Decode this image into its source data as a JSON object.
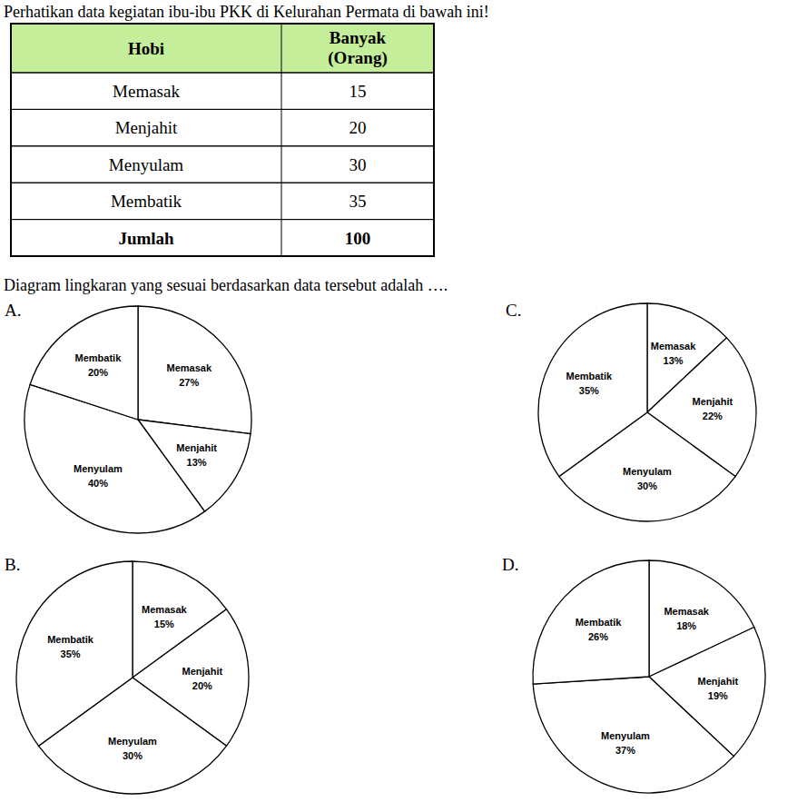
{
  "question": "Perhatikan data kegiatan ibu-ibu PKK di Kelurahan Permata di bawah ini!",
  "table": {
    "header": [
      "Hobi",
      "Banyak (Orang)"
    ],
    "rows": [
      [
        "Memasak",
        15
      ],
      [
        "Menjahit",
        20
      ],
      [
        "Menyulam",
        30
      ],
      [
        "Membatik",
        35
      ]
    ],
    "footer": [
      "Jumlah",
      100
    ]
  },
  "prompt": "Diagram lingkaran yang sesuai berdasarkan data tersebut adalah ….",
  "chart_data": [
    {
      "type": "pie",
      "title": "A.",
      "categories": [
        "Memasak",
        "Menjahit",
        "Menyulam",
        "Membatik"
      ],
      "values": [
        27,
        13,
        40,
        20
      ],
      "value_labels": [
        "27%",
        "13%",
        "40%",
        "20%"
      ],
      "data_labels": true,
      "color": "#ffffff"
    },
    {
      "type": "pie",
      "title": "B.",
      "categories": [
        "Memasak",
        "Menjahit",
        "Menyulam",
        "Membatik"
      ],
      "values": [
        15,
        20,
        30,
        35
      ],
      "value_labels": [
        "15%",
        "20%",
        "30%",
        "35%"
      ],
      "data_labels": true,
      "color": "#ffffff"
    },
    {
      "type": "pie",
      "title": "C.",
      "categories": [
        "Memasak",
        "Menjahit",
        "Menyulam",
        "Membatik"
      ],
      "values": [
        13,
        22,
        30,
        35
      ],
      "value_labels": [
        "13%",
        "22%",
        "30%",
        "35%"
      ],
      "data_labels": true,
      "color": "#ffffff"
    },
    {
      "type": "pie",
      "title": "D.",
      "categories": [
        "Memasak",
        "Menjahit",
        "Menyulam",
        "Membatik"
      ],
      "values": [
        18,
        19,
        37,
        26
      ],
      "value_labels": [
        "18%",
        "19%",
        "37%",
        "26%"
      ],
      "data_labels": true,
      "color": "#ffffff"
    }
  ]
}
